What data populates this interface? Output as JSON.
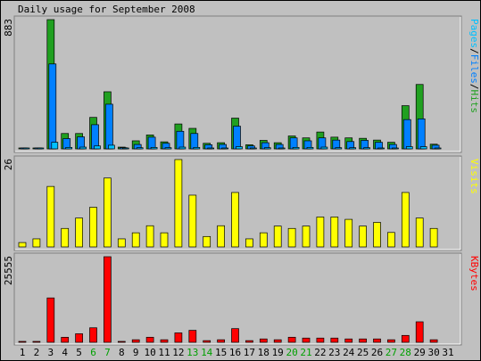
{
  "title": "Daily usage for September 2008",
  "colors": {
    "background": "#c0c0c0",
    "panel": "#c0c0c0",
    "hits": "#20a020",
    "files": "#0080ff",
    "pages": "#00c0ff",
    "visits": "#ffff00",
    "kbytes": "#ff0000",
    "weekend_label": "#00a000",
    "text": "#000000"
  },
  "chart_data": [
    {
      "type": "bar",
      "panel": "hits",
      "title": "Daily usage for September 2008",
      "max_label": "883",
      "legend": [
        {
          "text": "Pages",
          "color": "#00c0ff"
        },
        {
          "text": "/",
          "color": "#000000"
        },
        {
          "text": "Files",
          "color": "#0080ff"
        },
        {
          "text": "/",
          "color": "#000000"
        },
        {
          "text": "Hits",
          "color": "#20a020"
        }
      ],
      "ylim": [
        0,
        883
      ],
      "categories": [
        "1",
        "2",
        "3",
        "4",
        "5",
        "6",
        "7",
        "8",
        "9",
        "10",
        "11",
        "12",
        "13",
        "14",
        "15",
        "16",
        "17",
        "18",
        "19",
        "20",
        "21",
        "22",
        "23",
        "24",
        "25",
        "26",
        "27",
        "28",
        "29",
        "30",
        "31"
      ],
      "series": [
        {
          "name": "Hits",
          "values": [
            2,
            2,
            883,
            105,
            105,
            215,
            390,
            12,
            55,
            95,
            48,
            170,
            140,
            38,
            42,
            210,
            28,
            58,
            42,
            88,
            75,
            115,
            80,
            75,
            72,
            60,
            45,
            295,
            440,
            32,
            0
          ]
        },
        {
          "name": "Files",
          "values": [
            2,
            2,
            580,
            70,
            82,
            165,
            305,
            8,
            30,
            80,
            38,
            120,
            105,
            28,
            30,
            155,
            20,
            42,
            30,
            75,
            55,
            75,
            60,
            50,
            58,
            45,
            30,
            200,
            205,
            25,
            0
          ]
        },
        {
          "name": "Pages",
          "values": [
            2,
            2,
            45,
            10,
            12,
            20,
            25,
            3,
            8,
            10,
            8,
            12,
            10,
            5,
            6,
            15,
            5,
            8,
            6,
            10,
            10,
            12,
            8,
            8,
            8,
            6,
            5,
            15,
            15,
            5,
            0
          ]
        }
      ]
    },
    {
      "type": "bar",
      "panel": "visits",
      "max_label": "26",
      "legend": [
        {
          "text": "Visits",
          "color": "#ffff00"
        }
      ],
      "ylim": [
        0,
        26
      ],
      "categories": [
        "1",
        "2",
        "3",
        "4",
        "5",
        "6",
        "7",
        "8",
        "9",
        "10",
        "11",
        "12",
        "13",
        "14",
        "15",
        "16",
        "17",
        "18",
        "19",
        "20",
        "21",
        "22",
        "23",
        "24",
        "25",
        "26",
        "27",
        "28",
        "29",
        "30",
        "31"
      ],
      "series": [
        {
          "name": "Visits",
          "values": [
            1.3,
            2.4,
            18,
            5.5,
            8.6,
            11.8,
            20.5,
            2.4,
            4.2,
            6.3,
            4.2,
            26,
            15.4,
            3.1,
            6.3,
            16.2,
            2.4,
            4.2,
            6.2,
            5.5,
            6.2,
            8.9,
            8.9,
            8.2,
            6.2,
            7.3,
            4.3,
            16.2,
            8.6,
            5.5,
            0
          ]
        }
      ]
    },
    {
      "type": "bar",
      "panel": "kbytes",
      "max_label": "25555",
      "legend": [
        {
          "text": "KBytes",
          "color": "#ff0000"
        }
      ],
      "ylim": [
        0,
        25555
      ],
      "categories": [
        "1",
        "2",
        "3",
        "4",
        "5",
        "6",
        "7",
        "8",
        "9",
        "10",
        "11",
        "12",
        "13",
        "14",
        "15",
        "16",
        "17",
        "18",
        "19",
        "20",
        "21",
        "22",
        "23",
        "24",
        "25",
        "26",
        "27",
        "28",
        "29",
        "30",
        "31"
      ],
      "series": [
        {
          "name": "KBytes",
          "values": [
            250,
            250,
            13250,
            1500,
            2550,
            4330,
            25555,
            250,
            760,
            1510,
            760,
            2810,
            3570,
            500,
            760,
            4080,
            500,
            1000,
            760,
            1510,
            1260,
            1260,
            1260,
            1000,
            1000,
            1000,
            760,
            2050,
            6120,
            760,
            0
          ]
        }
      ]
    }
  ],
  "x_labels": [
    {
      "text": "1",
      "weekend": false
    },
    {
      "text": "2",
      "weekend": false
    },
    {
      "text": "3",
      "weekend": false
    },
    {
      "text": "4",
      "weekend": false
    },
    {
      "text": "5",
      "weekend": false
    },
    {
      "text": "6",
      "weekend": true
    },
    {
      "text": "7",
      "weekend": true
    },
    {
      "text": "8",
      "weekend": false
    },
    {
      "text": "9",
      "weekend": false
    },
    {
      "text": "10",
      "weekend": false
    },
    {
      "text": "11",
      "weekend": false
    },
    {
      "text": "12",
      "weekend": false
    },
    {
      "text": "13",
      "weekend": true
    },
    {
      "text": "14",
      "weekend": true
    },
    {
      "text": "15",
      "weekend": false
    },
    {
      "text": "16",
      "weekend": false
    },
    {
      "text": "17",
      "weekend": false
    },
    {
      "text": "18",
      "weekend": false
    },
    {
      "text": "19",
      "weekend": false
    },
    {
      "text": "20",
      "weekend": true
    },
    {
      "text": "21",
      "weekend": true
    },
    {
      "text": "22",
      "weekend": false
    },
    {
      "text": "23",
      "weekend": false
    },
    {
      "text": "24",
      "weekend": false
    },
    {
      "text": "25",
      "weekend": false
    },
    {
      "text": "26",
      "weekend": false
    },
    {
      "text": "27",
      "weekend": true
    },
    {
      "text": "28",
      "weekend": true
    },
    {
      "text": "29",
      "weekend": false
    },
    {
      "text": "30",
      "weekend": false
    },
    {
      "text": "31",
      "weekend": false
    }
  ]
}
